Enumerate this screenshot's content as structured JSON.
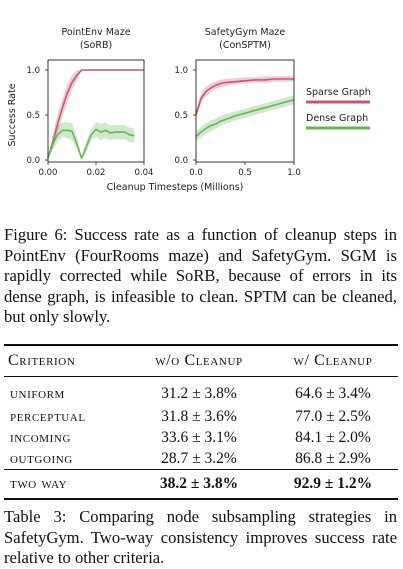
{
  "chart_data": [
    {
      "type": "line",
      "title": "PointEnv Maze",
      "subtitle": "(SoRB)",
      "ylabel": "Success Rate",
      "xlabel": "",
      "xlim": [
        0,
        0.04
      ],
      "ylim": [
        0,
        1
      ],
      "xticks": [
        "0.00",
        "0.02",
        "0.04"
      ],
      "yticks": [
        "0.0",
        "0.5",
        "1.0"
      ],
      "grid": false,
      "series": [
        {
          "name": "Sparse Graph",
          "color": "#c4586e",
          "x": [
            0,
            0.002,
            0.004,
            0.006,
            0.008,
            0.01,
            0.012,
            0.014,
            0.02,
            0.03,
            0.04
          ],
          "y": [
            0.02,
            0.2,
            0.4,
            0.58,
            0.74,
            0.86,
            0.94,
            1.0,
            1.0,
            1.0,
            1.0
          ],
          "lower": [
            0.02,
            0.12,
            0.3,
            0.48,
            0.64,
            0.78,
            0.88,
            1.0,
            1.0,
            1.0,
            1.0
          ],
          "upper": [
            0.02,
            0.28,
            0.5,
            0.68,
            0.84,
            0.94,
            1.0,
            1.0,
            1.0,
            1.0,
            1.0
          ]
        },
        {
          "name": "Dense Graph",
          "color": "#6bb35a",
          "x": [
            0,
            0.002,
            0.004,
            0.006,
            0.008,
            0.01,
            0.012,
            0.014,
            0.016,
            0.018,
            0.02,
            0.022,
            0.024,
            0.026,
            0.028,
            0.03,
            0.032,
            0.034,
            0.036
          ],
          "y": [
            0.02,
            0.18,
            0.28,
            0.33,
            0.33,
            0.32,
            0.18,
            0.02,
            0.15,
            0.28,
            0.34,
            0.31,
            0.33,
            0.3,
            0.31,
            0.31,
            0.31,
            0.28,
            0.27
          ],
          "lower": [
            0.02,
            0.12,
            0.2,
            0.26,
            0.24,
            0.22,
            0.12,
            0.02,
            0.08,
            0.22,
            0.26,
            0.22,
            0.24,
            0.22,
            0.23,
            0.23,
            0.23,
            0.2,
            0.19
          ],
          "upper": [
            0.02,
            0.24,
            0.38,
            0.42,
            0.42,
            0.41,
            0.26,
            0.02,
            0.22,
            0.34,
            0.42,
            0.4,
            0.42,
            0.38,
            0.39,
            0.39,
            0.39,
            0.36,
            0.35
          ]
        }
      ]
    },
    {
      "type": "line",
      "title": "SafetyGym Maze",
      "subtitle": "(ConSPTM)",
      "ylabel": "",
      "xlabel": "Cleanup Timesteps (Millions)",
      "xlim": [
        0,
        1.0
      ],
      "ylim": [
        0,
        1
      ],
      "xticks": [
        "0.0",
        "0.5",
        "1.0"
      ],
      "yticks": [
        "0.0",
        "0.5",
        "1.0"
      ],
      "grid": false,
      "legend": "right",
      "series": [
        {
          "name": "Sparse Graph",
          "color": "#c4586e",
          "x": [
            0,
            0.05,
            0.1,
            0.15,
            0.2,
            0.25,
            0.3,
            0.4,
            0.5,
            0.6,
            0.7,
            0.8,
            0.9,
            1.0
          ],
          "y": [
            0.5,
            0.68,
            0.76,
            0.8,
            0.83,
            0.85,
            0.86,
            0.87,
            0.88,
            0.89,
            0.89,
            0.9,
            0.9,
            0.9
          ],
          "lower": [
            0.46,
            0.63,
            0.71,
            0.75,
            0.79,
            0.81,
            0.82,
            0.84,
            0.85,
            0.86,
            0.86,
            0.87,
            0.87,
            0.87
          ],
          "upper": [
            0.54,
            0.73,
            0.81,
            0.85,
            0.87,
            0.89,
            0.9,
            0.91,
            0.92,
            0.92,
            0.93,
            0.93,
            0.93,
            0.93
          ]
        },
        {
          "name": "Dense Graph",
          "color": "#6bb35a",
          "x": [
            0,
            0.05,
            0.1,
            0.15,
            0.2,
            0.25,
            0.3,
            0.4,
            0.5,
            0.6,
            0.7,
            0.8,
            0.9,
            1.0
          ],
          "y": [
            0.26,
            0.31,
            0.35,
            0.38,
            0.4,
            0.43,
            0.45,
            0.49,
            0.52,
            0.55,
            0.58,
            0.61,
            0.64,
            0.67
          ],
          "lower": [
            0.21,
            0.25,
            0.29,
            0.32,
            0.35,
            0.38,
            0.4,
            0.44,
            0.47,
            0.5,
            0.53,
            0.56,
            0.59,
            0.62
          ],
          "upper": [
            0.31,
            0.37,
            0.41,
            0.44,
            0.46,
            0.49,
            0.51,
            0.54,
            0.57,
            0.6,
            0.63,
            0.66,
            0.69,
            0.72
          ]
        }
      ]
    }
  ],
  "figure_caption": {
    "label": "Figure 6:",
    "text": "Success rate as a function of cleanup steps in PointEnv (FourRooms maze) and SafetyGym. SGM is rapidly corrected while SoRB, because of errors in its dense graph, is infeasible to clean. SPTM can be cleaned, but only slowly."
  },
  "table": {
    "headers": [
      "Criterion",
      "w/o Cleanup",
      "w/ Cleanup"
    ],
    "rows": [
      [
        "uniform",
        "31.2 ± 3.8%",
        "64.6 ± 3.4%"
      ],
      [
        "perceptual",
        "31.8 ± 3.6%",
        "77.0 ± 2.5%"
      ],
      [
        "incoming",
        "33.6 ± 3.1%",
        "84.1 ± 2.0%"
      ],
      [
        "outgoing",
        "28.7 ± 3.2%",
        "86.8 ± 2.9%"
      ]
    ],
    "highlight_row": [
      "two way",
      "38.2 ± 3.8%",
      "92.9 ± 1.2%"
    ]
  },
  "table_caption": {
    "label": "Table 3:",
    "text": "Comparing node subsampling strategies in SafetyGym. Two-way consistency improves success rate relative to other criteria."
  }
}
